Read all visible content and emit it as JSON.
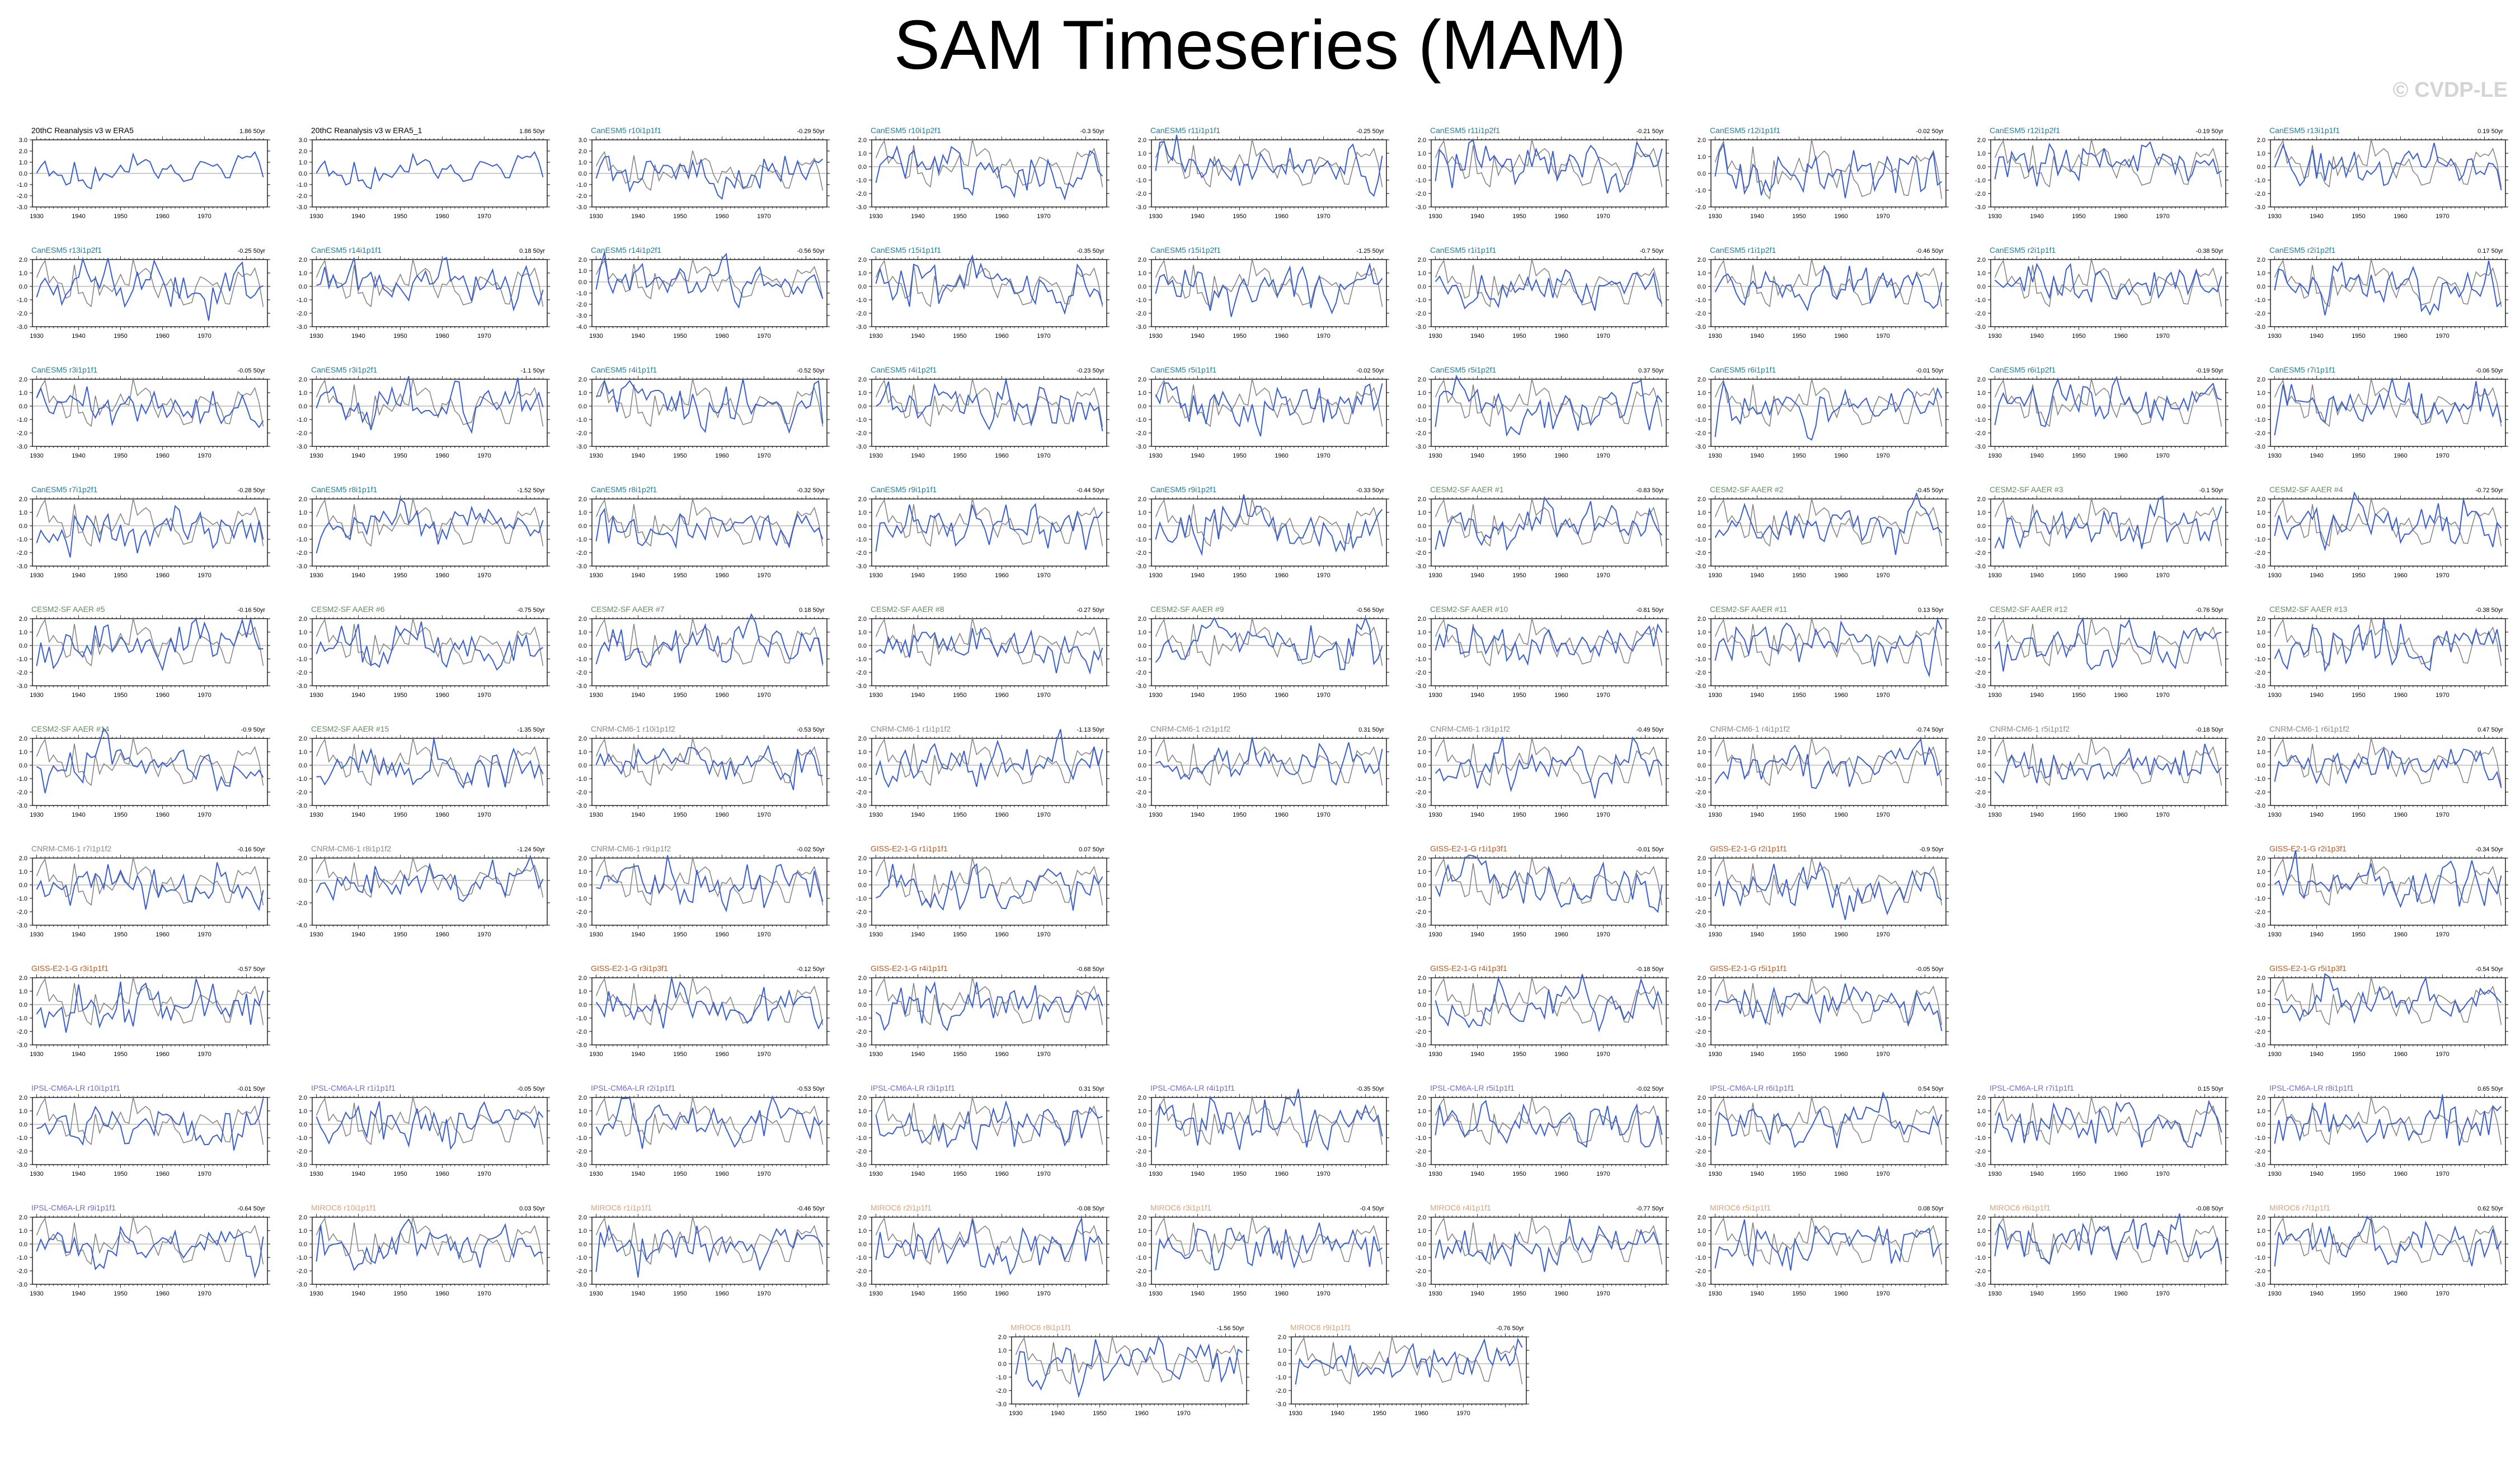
{
  "title": "SAM Timeseries (MAM)",
  "watermark": "© CVDP-LE",
  "colors": {
    "model": "#3a5fcd",
    "obs": "#808080",
    "zero": "#999999",
    "obsTitle": "#000000",
    "canesm5": "#1a7f9b",
    "cesm2": "#5f8f5f",
    "cnrm": "#8a8a8a",
    "giss": "#c0561a",
    "ipsl": "#7b68c8",
    "miroc6": "#e0a070"
  },
  "chart_data": {
    "type": "line",
    "xticks": [
      1930,
      1940,
      1950,
      1960,
      1970
    ],
    "xlim": [
      1929,
      1985
    ],
    "yticks_standard": [
      "2.0",
      "1.0",
      "0.0",
      "-1.0",
      "-2.0",
      "-3.0"
    ],
    "panels": [
      {
        "row": 0,
        "col": 0,
        "label": "20thC Reanalysis v3 w ERA5",
        "trend": "1.86 50yr",
        "group": "obs",
        "yticks": [
          "3.0",
          "2.0",
          "1.0",
          "0.0",
          "-1.0",
          "-2.0",
          "-3.0"
        ],
        "overlay": false
      },
      {
        "row": 0,
        "col": 1,
        "label": "20thC Reanalysis v3 w ERA5_1",
        "trend": "1.86 50yr",
        "group": "obs",
        "yticks": [
          "3.0",
          "2.0",
          "1.0",
          "0.0",
          "-1.0",
          "-2.0",
          "-3.0"
        ],
        "overlay": false
      },
      {
        "row": 0,
        "col": 2,
        "label": "CanESM5 r10i1p1f1",
        "trend": "-0.29 50yr",
        "group": "canesm5",
        "yticks": [
          "3.0",
          "2.0",
          "1.0",
          "0.0",
          "-1.0",
          "-2.0",
          "-3.0"
        ]
      },
      {
        "row": 0,
        "col": 3,
        "label": "CanESM5 r10i1p2f1",
        "trend": "-0.3 50yr",
        "group": "canesm5"
      },
      {
        "row": 0,
        "col": 4,
        "label": "CanESM5 r11i1p1f1",
        "trend": "-0.25 50yr",
        "group": "canesm5"
      },
      {
        "row": 0,
        "col": 5,
        "label": "CanESM5 r11i1p2f1",
        "trend": "-0.21 50yr",
        "group": "canesm5"
      },
      {
        "row": 0,
        "col": 6,
        "label": "CanESM5 r12i1p1f1",
        "trend": "-0.02 50yr",
        "group": "canesm5",
        "yticks": [
          "2.0",
          "1.0",
          "0.0",
          "-1.0",
          "-2.0"
        ]
      },
      {
        "row": 0,
        "col": 7,
        "label": "CanESM5 r12i1p2f1",
        "trend": "-0.19 50yr",
        "group": "canesm5"
      },
      {
        "row": 0,
        "col": 8,
        "label": "CanESM5 r13i1p1f1",
        "trend": "0.19 50yr",
        "group": "canesm5"
      },
      {
        "row": 1,
        "col": 0,
        "label": "CanESM5 r13i1p2f1",
        "trend": "-0.25 50yr",
        "group": "canesm5"
      },
      {
        "row": 1,
        "col": 1,
        "label": "CanESM5 r14i1p1f1",
        "trend": "0.18 50yr",
        "group": "canesm5"
      },
      {
        "row": 1,
        "col": 2,
        "label": "CanESM5 r14i1p2f1",
        "trend": "-0.56 50yr",
        "group": "canesm5",
        "yticks": [
          "2.0",
          "1.0",
          "0.0",
          "-1.0",
          "-2.0",
          "-3.0",
          "-4.0"
        ]
      },
      {
        "row": 1,
        "col": 3,
        "label": "CanESM5 r15i1p1f1",
        "trend": "-0.35 50yr",
        "group": "canesm5"
      },
      {
        "row": 1,
        "col": 4,
        "label": "CanESM5 r15i1p2f1",
        "trend": "-1.25 50yr",
        "group": "canesm5"
      },
      {
        "row": 1,
        "col": 5,
        "label": "CanESM5 r1i1p1f1",
        "trend": "-0.7 50yr",
        "group": "canesm5"
      },
      {
        "row": 1,
        "col": 6,
        "label": "CanESM5 r1i1p2f1",
        "trend": "-0.46 50yr",
        "group": "canesm5"
      },
      {
        "row": 1,
        "col": 7,
        "label": "CanESM5 r2i1p1f1",
        "trend": "-0.38 50yr",
        "group": "canesm5"
      },
      {
        "row": 1,
        "col": 8,
        "label": "CanESM5 r2i1p2f1",
        "trend": "0.17 50yr",
        "group": "canesm5"
      },
      {
        "row": 2,
        "col": 0,
        "label": "CanESM5 r3i1p1f1",
        "trend": "-0.05 50yr",
        "group": "canesm5"
      },
      {
        "row": 2,
        "col": 1,
        "label": "CanESM5 r3i1p2f1",
        "trend": "-1.1 50yr",
        "group": "canesm5"
      },
      {
        "row": 2,
        "col": 2,
        "label": "CanESM5 r4i1p1f1",
        "trend": "-0.52 50yr",
        "group": "canesm5"
      },
      {
        "row": 2,
        "col": 3,
        "label": "CanESM5 r4i1p2f1",
        "trend": "-0.23 50yr",
        "group": "canesm5"
      },
      {
        "row": 2,
        "col": 4,
        "label": "CanESM5 r5i1p1f1",
        "trend": "-0.02 50yr",
        "group": "canesm5"
      },
      {
        "row": 2,
        "col": 5,
        "label": "CanESM5 r5i1p2f1",
        "trend": "0.37 50yr",
        "group": "canesm5"
      },
      {
        "row": 2,
        "col": 6,
        "label": "CanESM5 r6i1p1f1",
        "trend": "-0.01 50yr",
        "group": "canesm5"
      },
      {
        "row": 2,
        "col": 7,
        "label": "CanESM5 r6i1p2f1",
        "trend": "-0.19 50yr",
        "group": "canesm5"
      },
      {
        "row": 2,
        "col": 8,
        "label": "CanESM5 r7i1p1f1",
        "trend": "-0.06 50yr",
        "group": "canesm5"
      },
      {
        "row": 3,
        "col": 0,
        "label": "CanESM5 r7i1p2f1",
        "trend": "-0.28 50yr",
        "group": "canesm5"
      },
      {
        "row": 3,
        "col": 1,
        "label": "CanESM5 r8i1p1f1",
        "trend": "-1.52 50yr",
        "group": "canesm5"
      },
      {
        "row": 3,
        "col": 2,
        "label": "CanESM5 r8i1p2f1",
        "trend": "-0.32 50yr",
        "group": "canesm5"
      },
      {
        "row": 3,
        "col": 3,
        "label": "CanESM5 r9i1p1f1",
        "trend": "-0.44 50yr",
        "group": "canesm5"
      },
      {
        "row": 3,
        "col": 4,
        "label": "CanESM5 r9i1p2f1",
        "trend": "-0.33 50yr",
        "group": "canesm5"
      },
      {
        "row": 3,
        "col": 5,
        "label": "CESM2-SF AAER #1",
        "trend": "-0.83 50yr",
        "group": "cesm2"
      },
      {
        "row": 3,
        "col": 6,
        "label": "CESM2-SF AAER #2",
        "trend": "-0.45 50yr",
        "group": "cesm2"
      },
      {
        "row": 3,
        "col": 7,
        "label": "CESM2-SF AAER #3",
        "trend": "-0.1 50yr",
        "group": "cesm2"
      },
      {
        "row": 3,
        "col": 8,
        "label": "CESM2-SF AAER #4",
        "trend": "-0.72 50yr",
        "group": "cesm2"
      },
      {
        "row": 4,
        "col": 0,
        "label": "CESM2-SF AAER #5",
        "trend": "-0.16 50yr",
        "group": "cesm2"
      },
      {
        "row": 4,
        "col": 1,
        "label": "CESM2-SF AAER #6",
        "trend": "-0.75 50yr",
        "group": "cesm2"
      },
      {
        "row": 4,
        "col": 2,
        "label": "CESM2-SF AAER #7",
        "trend": "0.18 50yr",
        "group": "cesm2"
      },
      {
        "row": 4,
        "col": 3,
        "label": "CESM2-SF AAER #8",
        "trend": "-0.27 50yr",
        "group": "cesm2"
      },
      {
        "row": 4,
        "col": 4,
        "label": "CESM2-SF AAER #9",
        "trend": "-0.56 50yr",
        "group": "cesm2"
      },
      {
        "row": 4,
        "col": 5,
        "label": "CESM2-SF AAER #10",
        "trend": "-0.81 50yr",
        "group": "cesm2"
      },
      {
        "row": 4,
        "col": 6,
        "label": "CESM2-SF AAER #11",
        "trend": "0.13 50yr",
        "group": "cesm2"
      },
      {
        "row": 4,
        "col": 7,
        "label": "CESM2-SF AAER #12",
        "trend": "-0.76 50yr",
        "group": "cesm2"
      },
      {
        "row": 4,
        "col": 8,
        "label": "CESM2-SF AAER #13",
        "trend": "-0.38 50yr",
        "group": "cesm2"
      },
      {
        "row": 5,
        "col": 0,
        "label": "CESM2-SF AAER #14",
        "trend": "-0.9 50yr",
        "group": "cesm2"
      },
      {
        "row": 5,
        "col": 1,
        "label": "CESM2-SF AAER #15",
        "trend": "-1.35 50yr",
        "group": "cesm2"
      },
      {
        "row": 5,
        "col": 2,
        "label": "CNRM-CM6-1 r10i1p1f2",
        "trend": "-0.53 50yr",
        "group": "cnrm"
      },
      {
        "row": 5,
        "col": 3,
        "label": "CNRM-CM6-1 r1i1p1f2",
        "trend": "-1.13 50yr",
        "group": "cnrm"
      },
      {
        "row": 5,
        "col": 4,
        "label": "CNRM-CM6-1 r2i1p1f2",
        "trend": "0.31 50yr",
        "group": "cnrm"
      },
      {
        "row": 5,
        "col": 5,
        "label": "CNRM-CM6-1 r3i1p1f2",
        "trend": "-0.49 50yr",
        "group": "cnrm"
      },
      {
        "row": 5,
        "col": 6,
        "label": "CNRM-CM6-1 r4i1p1f2",
        "trend": "-0.74 50yr",
        "group": "cnrm"
      },
      {
        "row": 5,
        "col": 7,
        "label": "CNRM-CM6-1 r5i1p1f2",
        "trend": "-0.18 50yr",
        "group": "cnrm"
      },
      {
        "row": 5,
        "col": 8,
        "label": "CNRM-CM6-1 r6i1p1f2",
        "trend": "0.47 50yr",
        "group": "cnrm"
      },
      {
        "row": 6,
        "col": 0,
        "label": "CNRM-CM6-1 r7i1p1f2",
        "trend": "-0.16 50yr",
        "group": "cnrm"
      },
      {
        "row": 6,
        "col": 1,
        "label": "CNRM-CM6-1 r8i1p1f2",
        "trend": "-1.24 50yr",
        "group": "cnrm",
        "yticks": [
          "2.0",
          "0.0",
          "-2.0",
          "-4.0"
        ]
      },
      {
        "row": 6,
        "col": 2,
        "label": "CNRM-CM6-1 r9i1p1f2",
        "trend": "-0.02 50yr",
        "group": "cnrm"
      },
      {
        "row": 6,
        "col": 3,
        "label": "GISS-E2-1-G r1i1p1f1",
        "trend": "0.07 50yr",
        "group": "giss"
      },
      {
        "row": 6,
        "col": 5,
        "label": "GISS-E2-1-G r1i1p3f1",
        "trend": "-0.01 50yr",
        "group": "giss"
      },
      {
        "row": 6,
        "col": 6,
        "label": "GISS-E2-1-G r2i1p1f1",
        "trend": "-0.9 50yr",
        "group": "giss"
      },
      {
        "row": 6,
        "col": 8,
        "label": "GISS-E2-1-G r2i1p3f1",
        "trend": "-0.34 50yr",
        "group": "giss"
      },
      {
        "row": 7,
        "col": 0,
        "label": "GISS-E2-1-G r3i1p1f1",
        "trend": "-0.57 50yr",
        "group": "giss"
      },
      {
        "row": 7,
        "col": 2,
        "label": "GISS-E2-1-G r3i1p3f1",
        "trend": "-0.12 50yr",
        "group": "giss"
      },
      {
        "row": 7,
        "col": 3,
        "label": "GISS-E2-1-G r4i1p1f1",
        "trend": "-0.68 50yr",
        "group": "giss"
      },
      {
        "row": 7,
        "col": 5,
        "label": "GISS-E2-1-G r4i1p3f1",
        "trend": "-0.18 50yr",
        "group": "giss"
      },
      {
        "row": 7,
        "col": 6,
        "label": "GISS-E2-1-G r5i1p1f1",
        "trend": "-0.05 50yr",
        "group": "giss"
      },
      {
        "row": 7,
        "col": 8,
        "label": "GISS-E2-1-G r5i1p3f1",
        "trend": "-0.54 50yr",
        "group": "giss"
      },
      {
        "row": 8,
        "col": 0,
        "label": "IPSL-CM6A-LR r10i1p1f1",
        "trend": "-0.01 50yr",
        "group": "ipsl"
      },
      {
        "row": 8,
        "col": 1,
        "label": "IPSL-CM6A-LR r1i1p1f1",
        "trend": "-0.05 50yr",
        "group": "ipsl"
      },
      {
        "row": 8,
        "col": 2,
        "label": "IPSL-CM6A-LR r2i1p1f1",
        "trend": "-0.53 50yr",
        "group": "ipsl"
      },
      {
        "row": 8,
        "col": 3,
        "label": "IPSL-CM6A-LR r3i1p1f1",
        "trend": "0.31 50yr",
        "group": "ipsl"
      },
      {
        "row": 8,
        "col": 4,
        "label": "IPSL-CM6A-LR r4i1p1f1",
        "trend": "-0.35 50yr",
        "group": "ipsl"
      },
      {
        "row": 8,
        "col": 5,
        "label": "IPSL-CM6A-LR r5i1p1f1",
        "trend": "-0.02 50yr",
        "group": "ipsl"
      },
      {
        "row": 8,
        "col": 6,
        "label": "IPSL-CM6A-LR r6i1p1f1",
        "trend": "0.54 50yr",
        "group": "ipsl"
      },
      {
        "row": 8,
        "col": 7,
        "label": "IPSL-CM6A-LR r7i1p1f1",
        "trend": "0.15 50yr",
        "group": "ipsl"
      },
      {
        "row": 8,
        "col": 8,
        "label": "IPSL-CM6A-LR r8i1p1f1",
        "trend": "0.65 50yr",
        "group": "ipsl"
      },
      {
        "row": 9,
        "col": 0,
        "label": "IPSL-CM6A-LR r9i1p1f1",
        "trend": "-0.64 50yr",
        "group": "ipsl"
      },
      {
        "row": 9,
        "col": 1,
        "label": "MIROC6 r10i1p1f1",
        "trend": "0.03 50yr",
        "group": "miroc6"
      },
      {
        "row": 9,
        "col": 2,
        "label": "MIROC6 r1i1p1f1",
        "trend": "-0.46 50yr",
        "group": "miroc6"
      },
      {
        "row": 9,
        "col": 3,
        "label": "MIROC6 r2i1p1f1",
        "trend": "-0.08 50yr",
        "group": "miroc6"
      },
      {
        "row": 9,
        "col": 4,
        "label": "MIROC6 r3i1p1f1",
        "trend": "-0.4 50yr",
        "group": "miroc6"
      },
      {
        "row": 9,
        "col": 5,
        "label": "MIROC6 r4i1p1f1",
        "trend": "-0.77 50yr",
        "group": "miroc6"
      },
      {
        "row": 9,
        "col": 6,
        "label": "MIROC6 r5i1p1f1",
        "trend": "0.08 50yr",
        "group": "miroc6"
      },
      {
        "row": 9,
        "col": 7,
        "label": "MIROC6 r6i1p1f1",
        "trend": "-0.08 50yr",
        "group": "miroc6"
      },
      {
        "row": 9,
        "col": 8,
        "label": "MIROC6 r7i1p1f1",
        "trend": "0.62 50yr",
        "group": "miroc6"
      },
      {
        "row": 10,
        "col": 3.5,
        "label": "MIROC6 r8i1p1f1",
        "trend": "-1.56 50yr",
        "group": "miroc6"
      },
      {
        "row": 10,
        "col": 4.5,
        "label": "MIROC6 r9i1p1f1",
        "trend": "-0.76 50yr",
        "group": "miroc6"
      }
    ]
  }
}
